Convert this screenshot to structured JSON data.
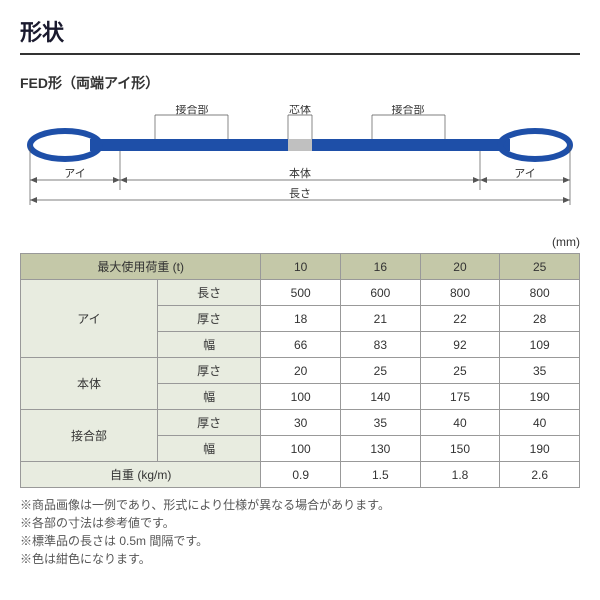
{
  "title": "形状",
  "subtitle": "FED形（両端アイ形）",
  "diagram": {
    "labels": {
      "joint": "接合部",
      "core": "芯体",
      "eye": "アイ",
      "body": "本体",
      "length": "長さ"
    },
    "colors": {
      "sling": "#1e4fa8",
      "core": "#c0c0c0",
      "line": "#555",
      "text": "#333"
    }
  },
  "unit": "(mm)",
  "table": {
    "header_bg": "#c4c8a8",
    "rowh_bg": "#e8ece0",
    "headers": {
      "load": "最大使用荷重 (t)",
      "vals": [
        "10",
        "16",
        "20",
        "25"
      ]
    },
    "groups": [
      {
        "name": "アイ",
        "rows": [
          {
            "label": "長さ",
            "vals": [
              "500",
              "600",
              "800",
              "800"
            ]
          },
          {
            "label": "厚さ",
            "vals": [
              "18",
              "21",
              "22",
              "28"
            ]
          },
          {
            "label": "幅",
            "vals": [
              "66",
              "83",
              "92",
              "109"
            ]
          }
        ]
      },
      {
        "name": "本体",
        "rows": [
          {
            "label": "厚さ",
            "vals": [
              "20",
              "25",
              "25",
              "35"
            ]
          },
          {
            "label": "幅",
            "vals": [
              "100",
              "140",
              "175",
              "190"
            ]
          }
        ]
      },
      {
        "name": "接合部",
        "rows": [
          {
            "label": "厚さ",
            "vals": [
              "30",
              "35",
              "40",
              "40"
            ]
          },
          {
            "label": "幅",
            "vals": [
              "100",
              "130",
              "150",
              "190"
            ]
          }
        ]
      }
    ],
    "weight": {
      "label": "自重 (kg/m)",
      "vals": [
        "0.9",
        "1.5",
        "1.8",
        "2.6"
      ]
    }
  },
  "notes": [
    "※商品画像は一例であり、形式により仕様が異なる場合があります。",
    "※各部の寸法は参考値です。",
    "※標準品の長さは 0.5m 間隔です。",
    "※色は紺色になります。"
  ]
}
